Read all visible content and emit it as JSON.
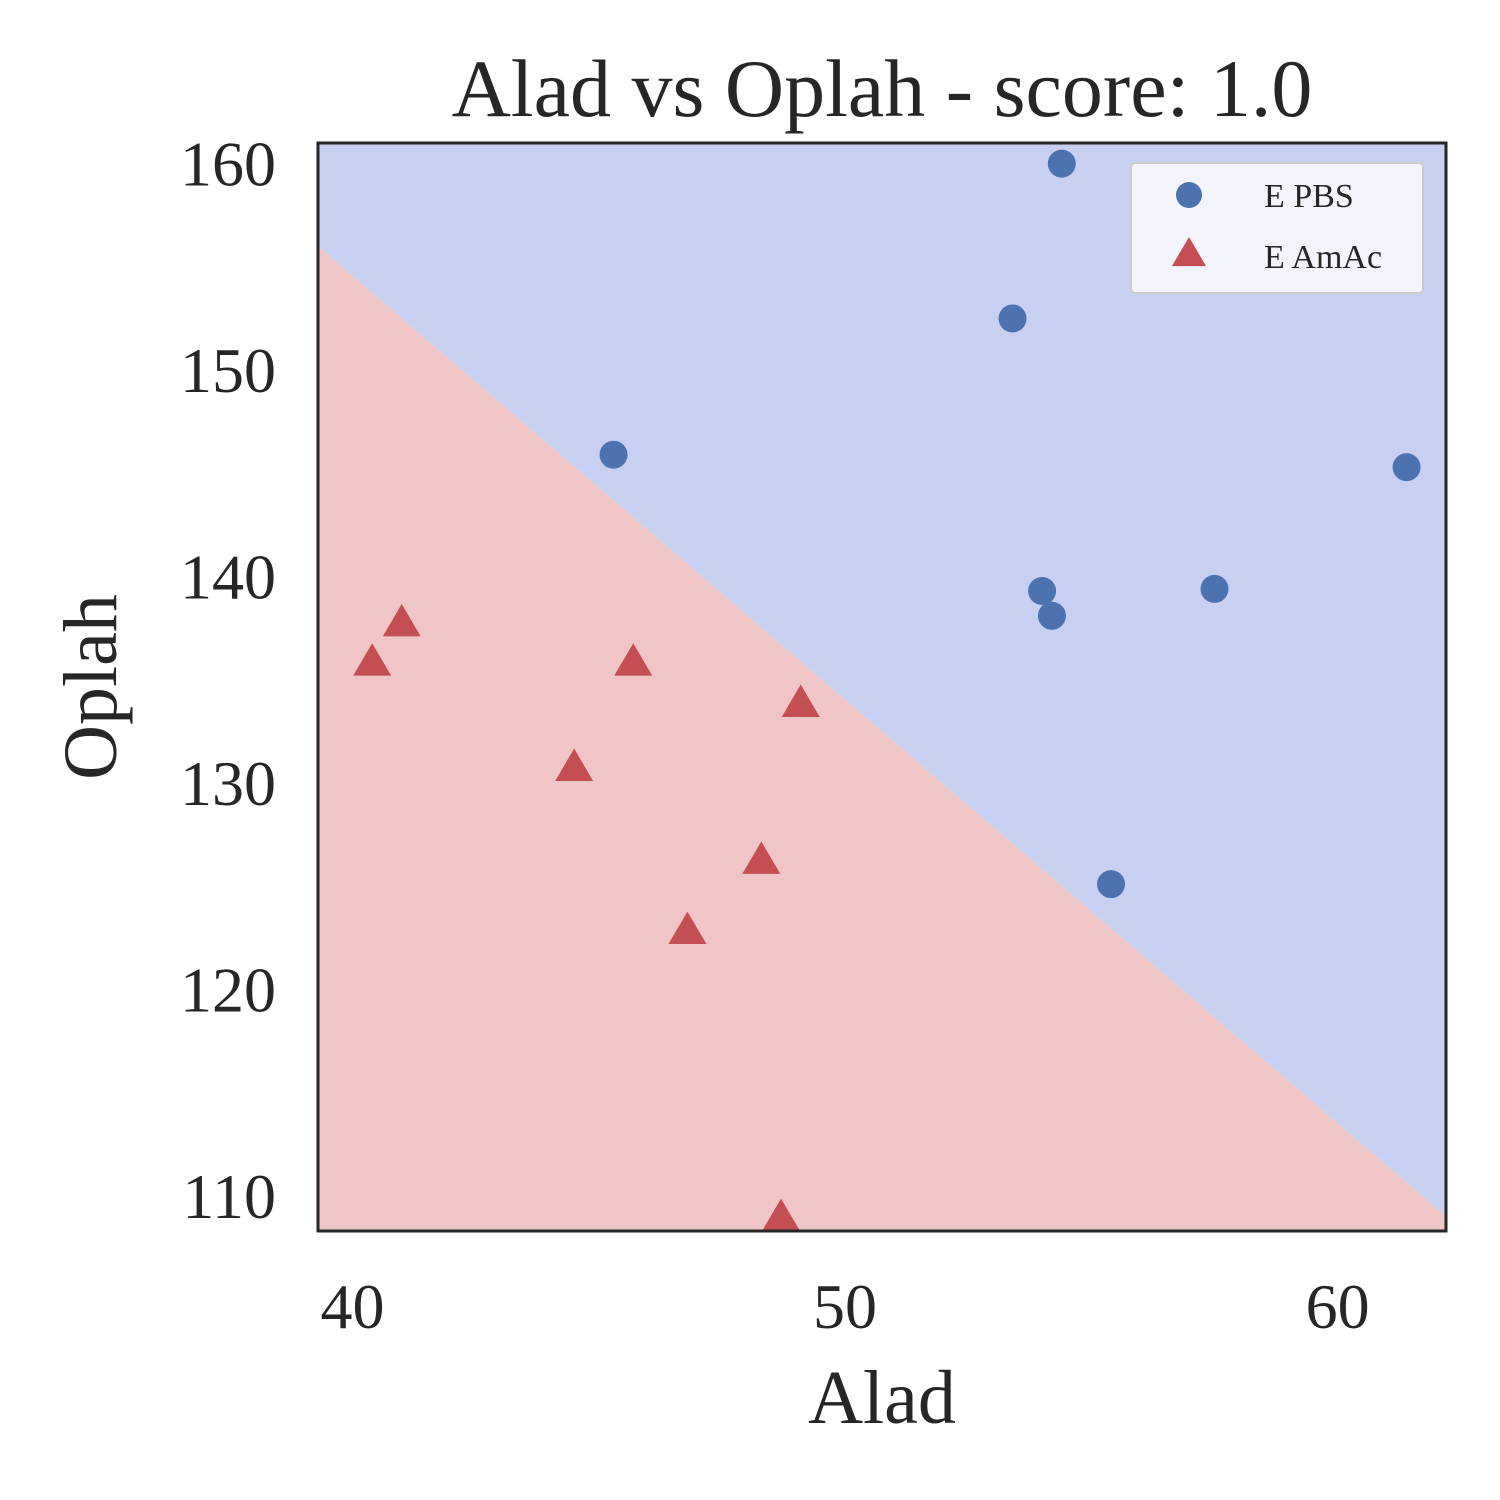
{
  "chart_data": {
    "type": "scatter",
    "title": "Alad vs Oplah - score: 1.0",
    "xlabel": "Alad",
    "ylabel": "Oplah",
    "xlim": [
      39.3,
      62.2
    ],
    "ylim": [
      108.3,
      161.0
    ],
    "xticks": [
      "40",
      "50",
      "60"
    ],
    "yticks": [
      "110",
      "120",
      "130",
      "140",
      "150",
      "160"
    ],
    "grid": false,
    "legend_position": "top-right",
    "decision_regions": {
      "boundary": [
        [
          39.3,
          156.0
        ],
        [
          62.2,
          109.0
        ]
      ],
      "upper_class": "E PBS",
      "lower_class": "E AmAc",
      "upper_color": "#c8d0f1",
      "lower_color": "#efc5c5"
    },
    "series": [
      {
        "name": "E PBS",
        "marker": "circle",
        "color": "#4c72b0",
        "points": [
          [
            54.4,
            160.0
          ],
          [
            53.4,
            152.5
          ],
          [
            45.3,
            145.9
          ],
          [
            61.4,
            145.3
          ],
          [
            54.0,
            139.3
          ],
          [
            54.2,
            138.1
          ],
          [
            57.5,
            139.4
          ],
          [
            55.4,
            125.1
          ]
        ]
      },
      {
        "name": "E AmAc",
        "marker": "triangle",
        "color": "#c44e52",
        "points": [
          [
            40.4,
            135.8
          ],
          [
            41.0,
            137.7
          ],
          [
            45.7,
            135.8
          ],
          [
            49.1,
            133.8
          ],
          [
            44.5,
            130.7
          ],
          [
            48.3,
            126.2
          ],
          [
            46.8,
            122.8
          ],
          [
            48.7,
            108.9
          ]
        ]
      }
    ]
  }
}
